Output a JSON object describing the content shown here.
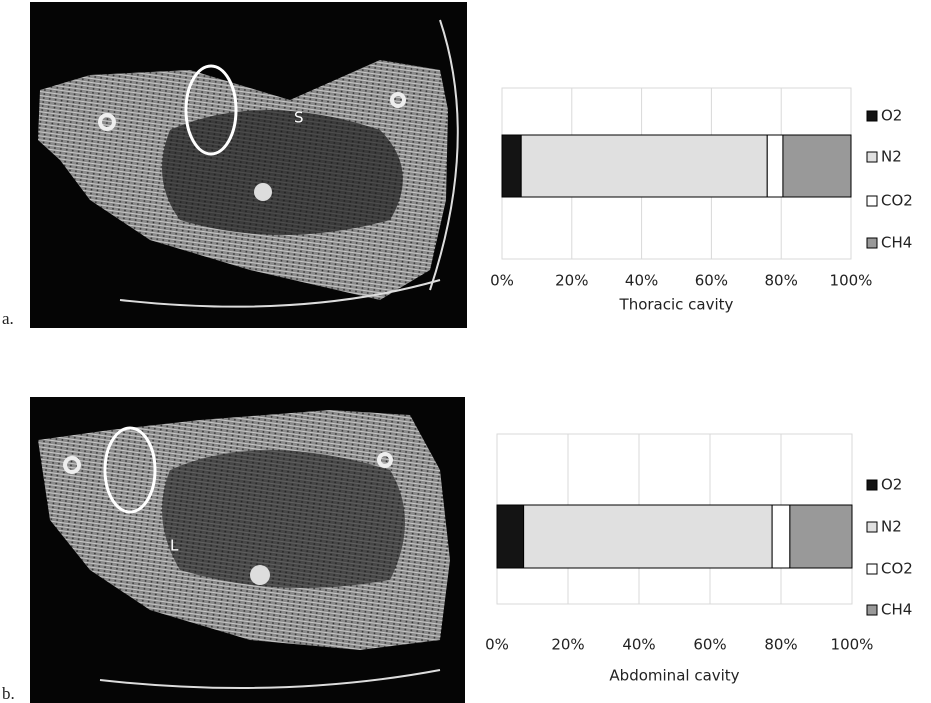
{
  "panel_labels": [
    "a.",
    "b."
  ],
  "image_labels": [
    "S",
    "L"
  ],
  "chart_data": [
    {
      "type": "bar",
      "orientation": "horizontal",
      "stacked": true,
      "x_label": "Thoracic cavity",
      "categories": [
        null
      ],
      "series": [
        {
          "name": "O2",
          "color": "#141414",
          "values": [
            5.5
          ]
        },
        {
          "name": "N2",
          "color": "#e0e0e0",
          "values": [
            70.5
          ]
        },
        {
          "name": "CO2",
          "color": "#ffffff",
          "values": [
            4.5
          ]
        },
        {
          "name": "CH4",
          "color": "#999999",
          "values": [
            19.5
          ]
        }
      ],
      "xlim": [
        0,
        100
      ],
      "xticks": [
        {
          "value": 0,
          "label": "0%"
        },
        {
          "value": 20,
          "label": "20%"
        },
        {
          "value": 40,
          "label": "40%"
        },
        {
          "value": 60,
          "label": "60%"
        },
        {
          "value": 80,
          "label": "80%"
        },
        {
          "value": 100,
          "label": "100%"
        }
      ],
      "grid": true,
      "legend": "right"
    },
    {
      "type": "bar",
      "orientation": "horizontal",
      "stacked": true,
      "x_label": "Abdominal cavity",
      "categories": [
        null
      ],
      "series": [
        {
          "name": "O2",
          "color": "#141414",
          "values": [
            7.5
          ]
        },
        {
          "name": "N2",
          "color": "#e0e0e0",
          "values": [
            70
          ]
        },
        {
          "name": "CO2",
          "color": "#ffffff",
          "values": [
            5
          ]
        },
        {
          "name": "CH4",
          "color": "#999999",
          "values": [
            17.5
          ]
        }
      ],
      "xlim": [
        0,
        100
      ],
      "xticks": [
        {
          "value": 0,
          "label": "0%"
        },
        {
          "value": 20,
          "label": "20%"
        },
        {
          "value": 40,
          "label": "40%"
        },
        {
          "value": 60,
          "label": "60%"
        },
        {
          "value": 80,
          "label": "80%"
        },
        {
          "value": 100,
          "label": "100%"
        }
      ],
      "grid": true,
      "legend": "right"
    }
  ]
}
